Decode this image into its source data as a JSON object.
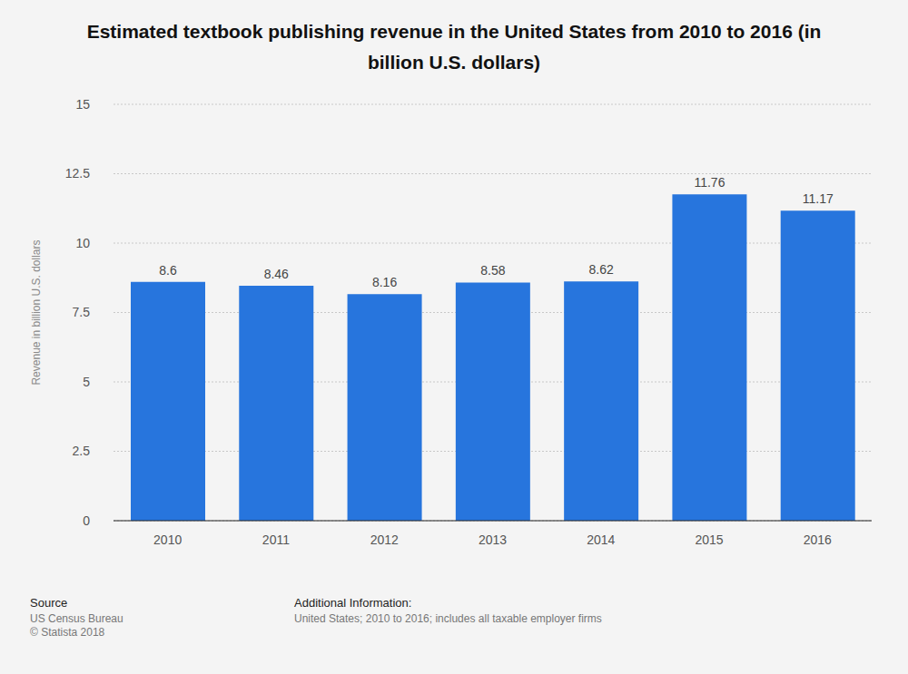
{
  "chart_data": {
    "type": "bar",
    "title": "Estimated textbook publishing revenue in the United States from 2010 to 2016 (in billion U.S. dollars)",
    "y_label": "Revenue in billion U.S. dollars",
    "categories": [
      "2010",
      "2011",
      "2012",
      "2013",
      "2014",
      "2015",
      "2016"
    ],
    "values": [
      8.6,
      8.46,
      8.16,
      8.58,
      8.62,
      11.76,
      11.17
    ],
    "color": "#2775dd",
    "ylim": [
      0,
      15
    ],
    "yticks": [
      0,
      2.5,
      5,
      7.5,
      10,
      12.5,
      15
    ],
    "grid": true,
    "data_labels": true,
    "source_label": "Source",
    "source": [
      "US Census Bureau",
      "© Statista 2018"
    ],
    "info_label": "Additional Information:",
    "info": "United States; 2010 to 2016; includes all taxable employer firms"
  }
}
